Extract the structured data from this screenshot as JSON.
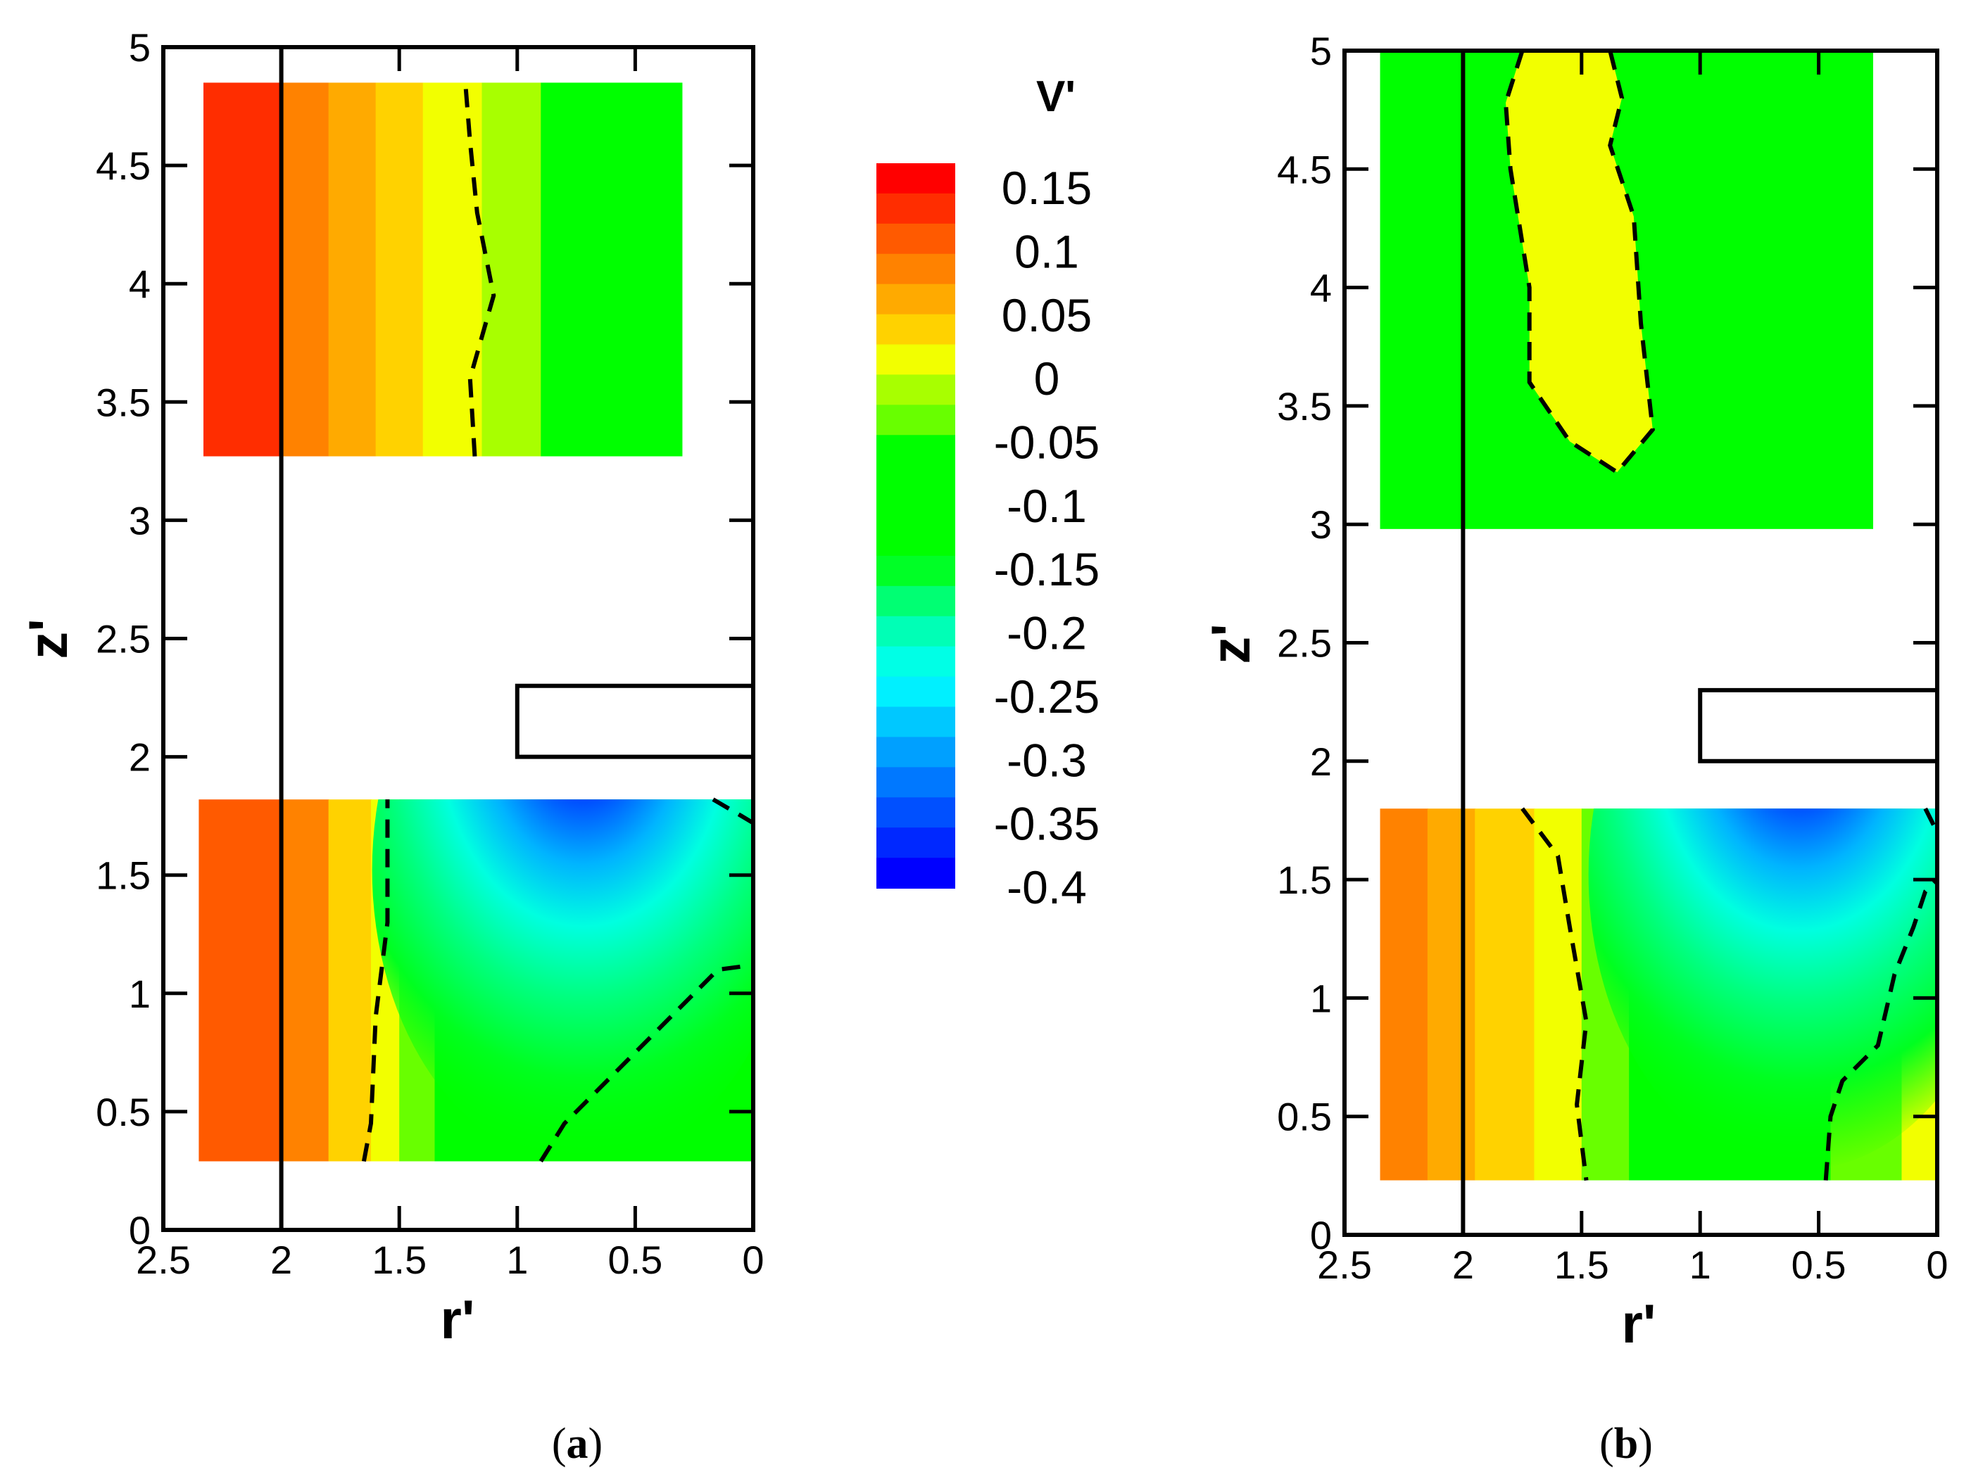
{
  "chart_data": [
    {
      "type": "heatmap",
      "panel": "a",
      "panel_label_letter": "a",
      "xlabel": "r'",
      "ylabel": "z'",
      "x_ticks": [
        "2.5",
        "2",
        "1.5",
        "1",
        "0.5",
        "0"
      ],
      "y_ticks": [
        "0",
        "0.5",
        "1",
        "1.5",
        "2",
        "2.5",
        "3",
        "3.5",
        "4",
        "4.5",
        "5"
      ],
      "xlim": [
        2.5,
        0
      ],
      "ylim": [
        0,
        5
      ],
      "vertical_line_r": 2.0,
      "obstacle": {
        "r_min": 0,
        "r_max": 1.0,
        "z_min": 2.0,
        "z_max": 2.3
      },
      "regions": [
        {
          "name": "upper-region",
          "r_range": [
            2.33,
            0.3
          ],
          "z_range": [
            3.27,
            4.85
          ],
          "columns": [
            {
              "r": [
                2.33,
                2.0
              ],
              "v": 0.14
            },
            {
              "r": [
                2.0,
                1.8
              ],
              "v": 0.11
            },
            {
              "r": [
                1.8,
                1.6
              ],
              "v": 0.085
            },
            {
              "r": [
                1.6,
                1.4
              ],
              "v": 0.06
            },
            {
              "r": [
                1.4,
                1.15
              ],
              "v": 0.03
            },
            {
              "r": [
                1.15,
                0.9
              ],
              "v": -0.01
            },
            {
              "r": [
                0.9,
                0.3
              ],
              "v": -0.04
            }
          ],
          "zero_contour": [
            [
              1.18,
              3.27
            ],
            [
              1.2,
              3.6
            ],
            [
              1.1,
              3.95
            ],
            [
              1.17,
              4.3
            ],
            [
              1.2,
              4.6
            ],
            [
              1.22,
              4.85
            ]
          ]
        },
        {
          "name": "lower-region",
          "r_range": [
            2.35,
            0.0
          ],
          "z_range": [
            0.29,
            1.82
          ],
          "columns": [
            {
              "r": [
                2.35,
                2.0
              ],
              "v": 0.13
            },
            {
              "r": [
                2.0,
                1.8
              ],
              "v": 0.1
            },
            {
              "r": [
                1.8,
                1.62
              ],
              "v": 0.06
            },
            {
              "r": [
                1.62,
                1.5
              ],
              "v": 0.025
            },
            {
              "r": [
                1.5,
                1.35
              ],
              "v": -0.02
            },
            {
              "r": [
                1.35,
                0.0
              ],
              "v": -0.07
            }
          ],
          "minimum": {
            "r": 0.72,
            "z": 1.7,
            "v": -0.4
          },
          "zero_contours": [
            [
              [
                1.65,
                0.29
              ],
              [
                1.62,
                0.45
              ],
              [
                1.6,
                0.9
              ],
              [
                1.55,
                1.3
              ],
              [
                1.55,
                1.82
              ]
            ],
            [
              [
                0.9,
                0.29
              ],
              [
                0.8,
                0.45
              ],
              [
                0.6,
                0.65
              ],
              [
                0.35,
                0.9
              ],
              [
                0.15,
                1.1
              ],
              [
                0.0,
                1.12
              ]
            ],
            [
              [
                0.17,
                1.82
              ],
              [
                0.05,
                1.75
              ],
              [
                0.0,
                1.72
              ]
            ]
          ]
        }
      ]
    },
    {
      "type": "heatmap",
      "panel": "b",
      "panel_label_letter": "b",
      "xlabel": "r'",
      "ylabel": "z'",
      "x_ticks": [
        "2.5",
        "2",
        "1.5",
        "1",
        "0.5",
        "0"
      ],
      "y_ticks": [
        "0",
        "0.5",
        "1",
        "1.5",
        "2",
        "2.5",
        "3",
        "3.5",
        "4",
        "4.5",
        "5"
      ],
      "xlim": [
        2.5,
        0
      ],
      "ylim": [
        0,
        5
      ],
      "vertical_line_r": 2.0,
      "obstacle": {
        "r_min": 0,
        "r_max": 1.0,
        "z_min": 2.0,
        "z_max": 2.3
      },
      "regions": [
        {
          "name": "upper-region",
          "r_range": [
            2.35,
            0.27
          ],
          "z_range": [
            2.98,
            5.0
          ],
          "background_v": -0.06,
          "zero_contour": [
            [
              1.75,
              5.0
            ],
            [
              1.82,
              4.78
            ],
            [
              1.8,
              4.5
            ],
            [
              1.72,
              4.0
            ],
            [
              1.72,
              3.6
            ],
            [
              1.55,
              3.35
            ],
            [
              1.35,
              3.22
            ],
            [
              1.2,
              3.4
            ],
            [
              1.25,
              3.85
            ],
            [
              1.28,
              4.3
            ],
            [
              1.38,
              4.6
            ],
            [
              1.33,
              4.8
            ],
            [
              1.38,
              5.0
            ]
          ]
        },
        {
          "name": "lower-region",
          "r_range": [
            2.35,
            0.0
          ],
          "z_range": [
            0.23,
            1.8
          ],
          "columns": [
            {
              "r": [
                2.35,
                2.15
              ],
              "v": 0.11
            },
            {
              "r": [
                2.15,
                1.95
              ],
              "v": 0.07
            },
            {
              "r": [
                1.95,
                1.7
              ],
              "v": 0.05
            },
            {
              "r": [
                1.7,
                1.5
              ],
              "v": 0.02
            },
            {
              "r": [
                1.5,
                1.3
              ],
              "v": -0.02
            },
            {
              "r": [
                1.3,
                0.45
              ],
              "v": -0.07
            },
            {
              "r": [
                0.45,
                0.15
              ],
              "v": -0.02
            },
            {
              "r": [
                0.15,
                0.0
              ],
              "v": 0.03
            }
          ],
          "minimum": {
            "r": 0.58,
            "z": 1.7,
            "v": -0.4
          },
          "zero_contours": [
            [
              [
                1.75,
                1.8
              ],
              [
                1.6,
                1.6
              ],
              [
                1.55,
                1.3
              ],
              [
                1.48,
                0.9
              ],
              [
                1.52,
                0.55
              ],
              [
                1.48,
                0.23
              ]
            ],
            [
              [
                0.47,
                0.23
              ],
              [
                0.45,
                0.5
              ],
              [
                0.4,
                0.65
              ],
              [
                0.25,
                0.8
              ],
              [
                0.18,
                1.1
              ],
              [
                0.1,
                1.3
              ],
              [
                0.05,
                1.45
              ],
              [
                0.0,
                1.5
              ]
            ],
            [
              [
                0.05,
                1.8
              ],
              [
                0.0,
                1.7
              ]
            ]
          ]
        }
      ]
    }
  ],
  "colorbar": {
    "title": "V'",
    "vmin": -0.4,
    "vmax": 0.17,
    "levels": [
      0.165,
      0.15,
      0.125,
      0.1,
      0.075,
      0.05,
      0.025,
      0.0,
      -0.025,
      -0.05,
      -0.075,
      -0.1,
      -0.125,
      -0.15,
      -0.175,
      -0.2,
      -0.225,
      -0.25,
      -0.275,
      -0.3,
      -0.325,
      -0.35,
      -0.375,
      -0.4
    ],
    "colors": [
      "#ff0000",
      "#ff2d00",
      "#ff5a00",
      "#ff8200",
      "#ffaa00",
      "#ffd200",
      "#f2ff00",
      "#a8ff00",
      "#68ff00",
      "#00ff00",
      "#00ff00",
      "#00ff00",
      "#00ff00",
      "#00ff26",
      "#00ff73",
      "#00ffb6",
      "#00ffe6",
      "#00f0ff",
      "#00c8ff",
      "#00a0ff",
      "#0078ff",
      "#0050ff",
      "#0028ff",
      "#0000ff"
    ],
    "tick_labels": [
      "0.15",
      "0.1",
      "0.05",
      "0",
      "-0.05",
      "-0.1",
      "-0.15",
      "-0.2",
      "-0.25",
      "-0.3",
      "-0.35",
      "-0.4"
    ]
  },
  "panel_labels": {
    "open": "(",
    "close": ")"
  }
}
